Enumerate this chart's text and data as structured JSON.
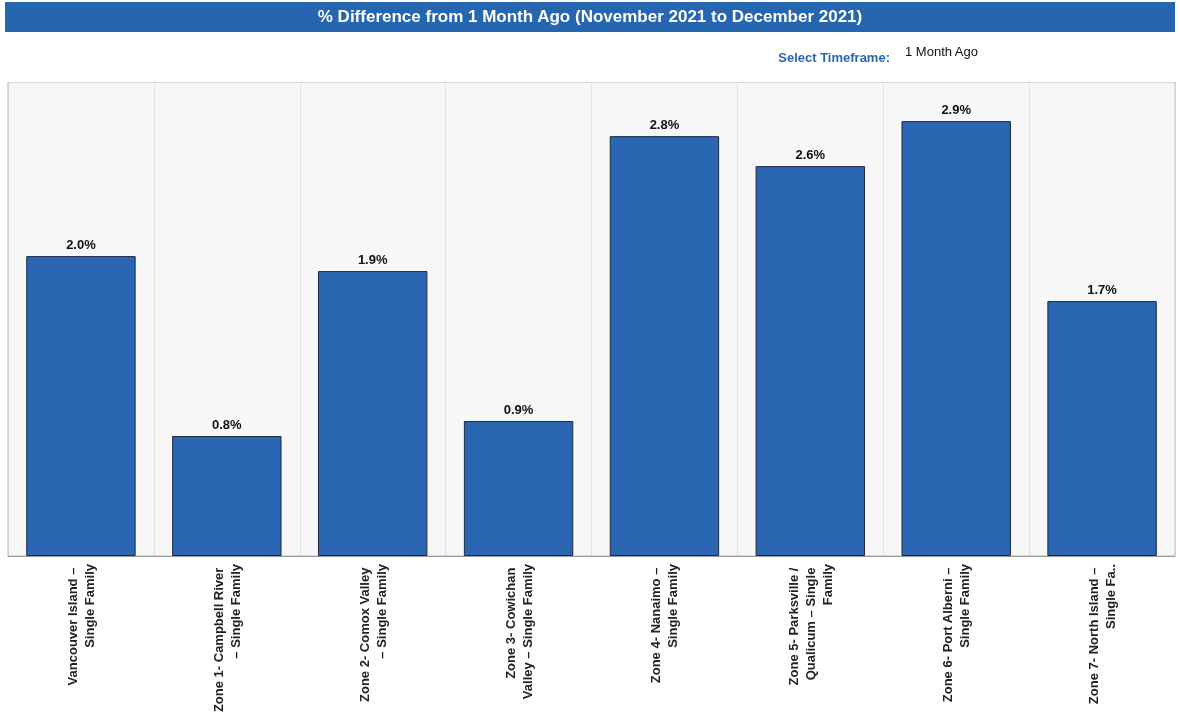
{
  "chart_data": {
    "type": "bar",
    "title": "% Difference from 1 Month Ago (November 2021 to December 2021)",
    "annotations": [
      "Select Timeframe:",
      "1 Month Ago"
    ],
    "categories": [
      "Vancouver Island – Single Family",
      "Zone 1- Campbell River – Single Family",
      "Zone 2- Comox Valley – Single Family",
      "Zone 3- Cowichan Valley – Single Family",
      "Zone 4- Nanaimo – Single Family",
      "Zone 5- Parksville / Qualicum – Single Family",
      "Zone 6- Port Alberni – Single Family",
      "Zone 7- North Island – Single Fa.."
    ],
    "values": [
      2.0,
      0.8,
      1.9,
      0.9,
      2.8,
      2.6,
      2.9,
      1.7
    ],
    "value_labels": [
      "2.0%",
      "0.8%",
      "1.9%",
      "0.9%",
      "2.8%",
      "2.6%",
      "2.9%",
      "1.7%"
    ],
    "color": "#2a66b1",
    "grid": "x"
  }
}
